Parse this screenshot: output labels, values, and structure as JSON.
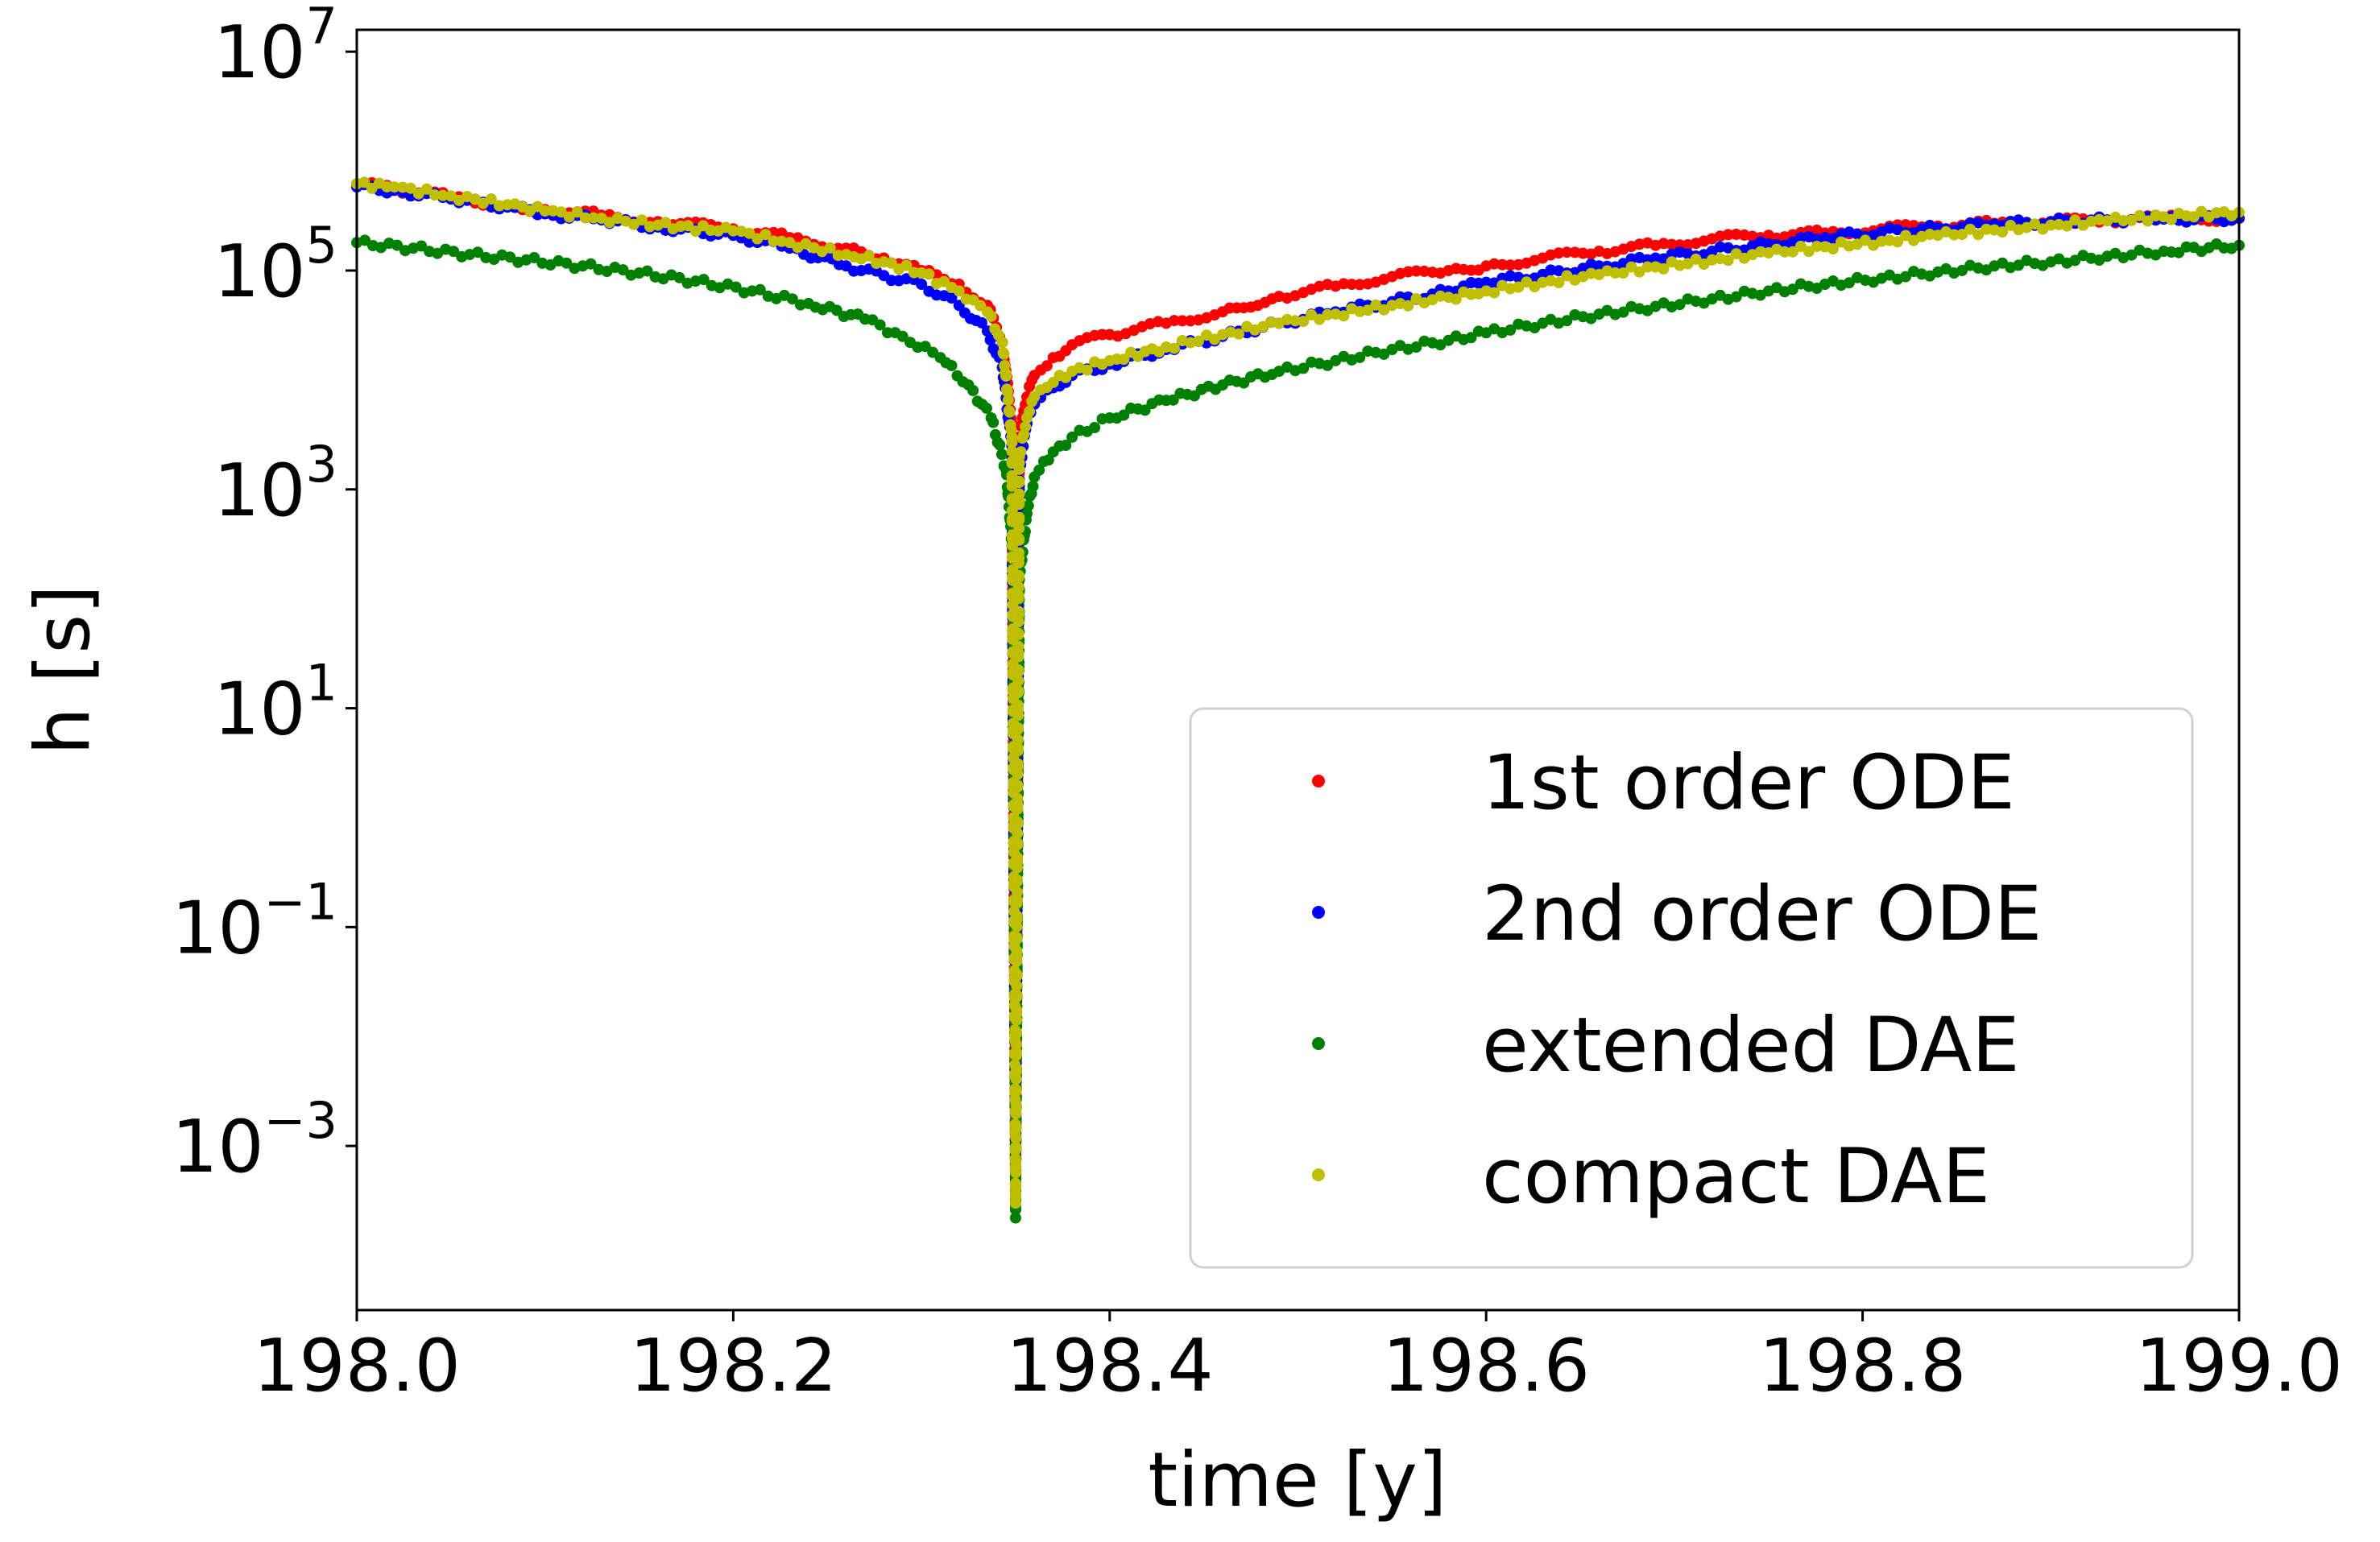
{
  "chart_data": {
    "type": "scatter",
    "xlabel": "time [y]",
    "ylabel": "h [s]",
    "xlim": [
      198.0,
      199.0
    ],
    "ylim_log10": [
      -4.5,
      7.2
    ],
    "y_scale": "log",
    "grid": false,
    "legend_position": "lower-right",
    "x_ticks": [
      198.0,
      198.2,
      198.4,
      198.6,
      198.8,
      199.0
    ],
    "x_tick_labels": [
      "198.0",
      "198.2",
      "198.4",
      "198.6",
      "198.8",
      "199.0"
    ],
    "y_ticks": [
      {
        "exp": 7,
        "base": "10",
        "sup": "7"
      },
      {
        "exp": 5,
        "base": "10",
        "sup": "5"
      },
      {
        "exp": 3,
        "base": "10",
        "sup": "3"
      },
      {
        "exp": 1,
        "base": "10",
        "sup": "1"
      },
      {
        "exp": -1,
        "base": "10",
        "sup": "−1"
      },
      {
        "exp": -3,
        "base": "10",
        "sup": "−3"
      }
    ],
    "series": [
      {
        "name": "1st order ODE",
        "color": "#ff0000",
        "points": [
          [
            198.0,
            620000
          ],
          [
            198.02,
            560000
          ],
          [
            198.05,
            470000
          ],
          [
            198.08,
            390000
          ],
          [
            198.1,
            360000
          ],
          [
            198.13,
            320000
          ],
          [
            198.16,
            280000
          ],
          [
            198.2,
            240000
          ],
          [
            198.23,
            200000
          ],
          [
            198.26,
            160000
          ],
          [
            198.28,
            130000
          ],
          [
            198.3,
            100000
          ],
          [
            198.32,
            75000
          ],
          [
            198.335,
            48000
          ],
          [
            198.343,
            22000
          ],
          [
            198.348,
            4000
          ],
          [
            198.35,
            0.0004
          ],
          [
            198.352,
            3000
          ],
          [
            198.356,
            7000
          ],
          [
            198.36,
            11000
          ],
          [
            198.37,
            16000
          ],
          [
            198.38,
            21000
          ],
          [
            198.4,
            26000
          ],
          [
            198.43,
            33000
          ],
          [
            198.46,
            42000
          ],
          [
            198.49,
            58000
          ],
          [
            198.52,
            72000
          ],
          [
            198.55,
            88000
          ],
          [
            198.58,
            100000
          ],
          [
            198.6,
            110000
          ],
          [
            198.63,
            130000
          ],
          [
            198.66,
            150000
          ],
          [
            198.69,
            170000
          ],
          [
            198.72,
            195000
          ],
          [
            198.75,
            210000
          ],
          [
            198.78,
            220000
          ],
          [
            198.81,
            240000
          ],
          [
            198.84,
            255000
          ],
          [
            198.87,
            270000
          ],
          [
            198.9,
            280000
          ],
          [
            198.93,
            290000
          ],
          [
            198.96,
            300000
          ],
          [
            199.0,
            300000
          ]
        ]
      },
      {
        "name": "2nd order ODE",
        "color": "#0000ff",
        "points": [
          [
            198.0,
            580000
          ],
          [
            198.02,
            540000
          ],
          [
            198.05,
            450000
          ],
          [
            198.08,
            380000
          ],
          [
            198.1,
            330000
          ],
          [
            198.13,
            290000
          ],
          [
            198.16,
            250000
          ],
          [
            198.2,
            210000
          ],
          [
            198.23,
            160000
          ],
          [
            198.26,
            110000
          ],
          [
            198.28,
            90000
          ],
          [
            198.3,
            75000
          ],
          [
            198.32,
            48000
          ],
          [
            198.335,
            28000
          ],
          [
            198.343,
            13000
          ],
          [
            198.348,
            2500
          ],
          [
            198.35,
            0.0004
          ],
          [
            198.352,
            1500
          ],
          [
            198.356,
            4000
          ],
          [
            198.36,
            6000
          ],
          [
            198.37,
            8500
          ],
          [
            198.38,
            11000
          ],
          [
            198.4,
            14000
          ],
          [
            198.43,
            19000
          ],
          [
            198.46,
            25000
          ],
          [
            198.49,
            33000
          ],
          [
            198.52,
            42000
          ],
          [
            198.55,
            52000
          ],
          [
            198.58,
            65000
          ],
          [
            198.6,
            78000
          ],
          [
            198.63,
            92000
          ],
          [
            198.66,
            110000
          ],
          [
            198.69,
            130000
          ],
          [
            198.72,
            150000
          ],
          [
            198.75,
            175000
          ],
          [
            198.78,
            200000
          ],
          [
            198.81,
            225000
          ],
          [
            198.84,
            245000
          ],
          [
            198.87,
            265000
          ],
          [
            198.9,
            280000
          ],
          [
            198.93,
            290000
          ],
          [
            198.96,
            295000
          ],
          [
            199.0,
            300000
          ]
        ]
      },
      {
        "name": "extended DAE",
        "color": "#008000",
        "points": [
          [
            198.0,
            180000
          ],
          [
            198.03,
            160000
          ],
          [
            198.06,
            140000
          ],
          [
            198.09,
            125000
          ],
          [
            198.12,
            110000
          ],
          [
            198.15,
            95000
          ],
          [
            198.18,
            80000
          ],
          [
            198.21,
            65000
          ],
          [
            198.24,
            50000
          ],
          [
            198.27,
            36000
          ],
          [
            198.29,
            25000
          ],
          [
            198.31,
            16000
          ],
          [
            198.325,
            9000
          ],
          [
            198.337,
            4500
          ],
          [
            198.345,
            1500
          ],
          [
            198.349,
            200
          ],
          [
            198.35,
            0.00022
          ],
          [
            198.352,
            150
          ],
          [
            198.356,
            600
          ],
          [
            198.36,
            1300
          ],
          [
            198.37,
            2200
          ],
          [
            198.38,
            3000
          ],
          [
            198.4,
            4500
          ],
          [
            198.43,
            6500
          ],
          [
            198.46,
            9000
          ],
          [
            198.49,
            12000
          ],
          [
            198.52,
            15000
          ],
          [
            198.55,
            19000
          ],
          [
            198.58,
            23000
          ],
          [
            198.6,
            27000
          ],
          [
            198.63,
            33000
          ],
          [
            198.66,
            40000
          ],
          [
            198.69,
            47000
          ],
          [
            198.72,
            55000
          ],
          [
            198.75,
            65000
          ],
          [
            198.78,
            75000
          ],
          [
            198.81,
            85000
          ],
          [
            198.84,
            97000
          ],
          [
            198.87,
            110000
          ],
          [
            198.9,
            120000
          ],
          [
            198.93,
            135000
          ],
          [
            198.96,
            150000
          ],
          [
            199.0,
            170000
          ]
        ]
      },
      {
        "name": "compact DAE",
        "color": "#bfbf00",
        "points": [
          [
            198.0,
            620000
          ],
          [
            198.02,
            580000
          ],
          [
            198.05,
            480000
          ],
          [
            198.08,
            400000
          ],
          [
            198.1,
            350000
          ],
          [
            198.13,
            300000
          ],
          [
            198.16,
            260000
          ],
          [
            198.2,
            230000
          ],
          [
            198.23,
            180000
          ],
          [
            198.26,
            140000
          ],
          [
            198.28,
            120000
          ],
          [
            198.3,
            95000
          ],
          [
            198.32,
            65000
          ],
          [
            198.335,
            42000
          ],
          [
            198.343,
            22000
          ],
          [
            198.348,
            3000
          ],
          [
            198.35,
            0.0003
          ],
          [
            198.352,
            2000
          ],
          [
            198.356,
            4500
          ],
          [
            198.36,
            7000
          ],
          [
            198.37,
            9500
          ],
          [
            198.38,
            12000
          ],
          [
            198.4,
            15000
          ],
          [
            198.43,
            20000
          ],
          [
            198.46,
            26000
          ],
          [
            198.49,
            33000
          ],
          [
            198.52,
            40000
          ],
          [
            198.55,
            48000
          ],
          [
            198.58,
            57000
          ],
          [
            198.6,
            65000
          ],
          [
            198.63,
            78000
          ],
          [
            198.66,
            92000
          ],
          [
            198.69,
            108000
          ],
          [
            198.72,
            125000
          ],
          [
            198.75,
            145000
          ],
          [
            198.78,
            165000
          ],
          [
            198.81,
            185000
          ],
          [
            198.84,
            210000
          ],
          [
            198.87,
            235000
          ],
          [
            198.9,
            260000
          ],
          [
            198.93,
            285000
          ],
          [
            198.96,
            310000
          ],
          [
            199.0,
            340000
          ]
        ]
      }
    ]
  }
}
